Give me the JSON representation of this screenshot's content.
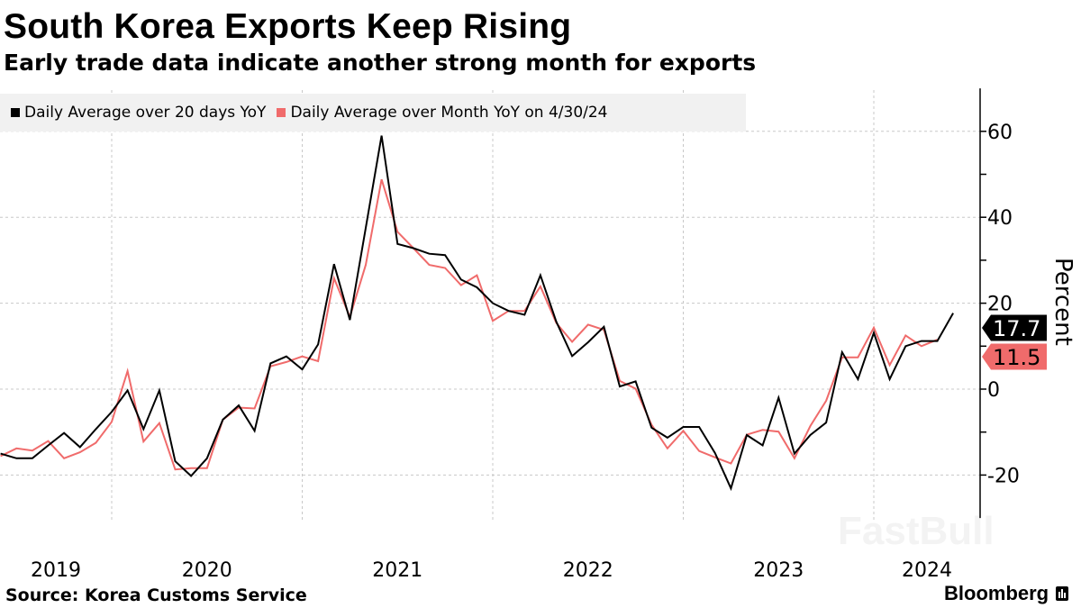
{
  "header": {
    "title": "South Korea Exports Keep Rising",
    "subtitle": "Early trade data indicate another strong month for exports"
  },
  "footer": {
    "source": "Source: Korea Customs Service",
    "brand": "Bloomberg",
    "watermark": "FastBull"
  },
  "chart_data": {
    "type": "line",
    "title": "South Korea Exports Keep Rising",
    "subtitle": "Early trade data indicate another strong month for exports",
    "ylabel": "Percent",
    "xlabel": "",
    "ylim": [
      -30,
      70
    ],
    "yticks": [
      -20,
      0,
      20,
      40,
      60
    ],
    "xtick_labels": [
      "2019",
      "2020",
      "2021",
      "2022",
      "2023",
      "2024"
    ],
    "grid": true,
    "legend_position": "top-left",
    "y_axis_side": "right",
    "series": [
      {
        "name": "Daily Average over 20 days YoY",
        "color": "#000000",
        "last_value_label": "17.7",
        "x": [
          "2019-05",
          "2019-06",
          "2019-07",
          "2019-08",
          "2019-09",
          "2019-10",
          "2019-11",
          "2019-12",
          "2020-01",
          "2020-02",
          "2020-03",
          "2020-04",
          "2020-05",
          "2020-06",
          "2020-07",
          "2020-08",
          "2020-09",
          "2020-10",
          "2020-11",
          "2020-12",
          "2021-01",
          "2021-02",
          "2021-03",
          "2021-04",
          "2021-05",
          "2021-06",
          "2021-07",
          "2021-08",
          "2021-09",
          "2021-10",
          "2021-11",
          "2021-12",
          "2022-01",
          "2022-02",
          "2022-03",
          "2022-04",
          "2022-05",
          "2022-06",
          "2022-07",
          "2022-08",
          "2022-09",
          "2022-10",
          "2022-11",
          "2022-12",
          "2023-01",
          "2023-02",
          "2023-03",
          "2023-04",
          "2023-05",
          "2023-06",
          "2023-07",
          "2023-08",
          "2023-09",
          "2023-10",
          "2023-11",
          "2023-12",
          "2024-01",
          "2024-02",
          "2024-03",
          "2024-04",
          "2024-05"
        ],
        "values": [
          -15.0,
          -16.1,
          -16.1,
          -13.1,
          -10.2,
          -13.5,
          -9.3,
          -5.3,
          -0.3,
          -9.3,
          -0.3,
          -16.8,
          -20.2,
          -16.1,
          -7.1,
          -3.8,
          -9.7,
          6.0,
          7.6,
          4.6,
          10.4,
          29.1,
          16.1,
          37.5,
          59.0,
          33.8,
          32.8,
          31.5,
          31.2,
          25.5,
          23.7,
          20.0,
          18.2,
          17.3,
          26.5,
          15.7,
          7.7,
          10.9,
          14.5,
          0.6,
          1.8,
          -9.0,
          -11.3,
          -8.8,
          -8.8,
          -14.9,
          -23.1,
          -10.7,
          -13.1,
          -2.0,
          -15.0,
          -10.7,
          -7.8,
          8.6,
          2.3,
          13.1,
          2.3,
          10.0,
          11.2,
          11.2,
          17.7
        ]
      },
      {
        "name": "Daily Average over Month YoY on 4/30/24",
        "color": "#f06b6b",
        "last_value_label": "11.5",
        "x": [
          "2019-05",
          "2019-06",
          "2019-07",
          "2019-08",
          "2019-09",
          "2019-10",
          "2019-11",
          "2019-12",
          "2020-01",
          "2020-02",
          "2020-03",
          "2020-04",
          "2020-05",
          "2020-06",
          "2020-07",
          "2020-08",
          "2020-09",
          "2020-10",
          "2020-11",
          "2020-12",
          "2021-01",
          "2021-02",
          "2021-03",
          "2021-04",
          "2021-05",
          "2021-06",
          "2021-07",
          "2021-08",
          "2021-09",
          "2021-10",
          "2021-11",
          "2021-12",
          "2022-01",
          "2022-02",
          "2022-03",
          "2022-04",
          "2022-05",
          "2022-06",
          "2022-07",
          "2022-08",
          "2022-09",
          "2022-10",
          "2022-11",
          "2022-12",
          "2023-01",
          "2023-02",
          "2023-03",
          "2023-04",
          "2023-05",
          "2023-06",
          "2023-07",
          "2023-08",
          "2023-09",
          "2023-10",
          "2023-11",
          "2023-12",
          "2024-01",
          "2024-02",
          "2024-03",
          "2024-04"
        ],
        "values": [
          -15.6,
          -13.8,
          -14.3,
          -12.1,
          -16.1,
          -14.7,
          -12.5,
          -7.6,
          4.2,
          -12.2,
          -7.9,
          -18.7,
          -18.4,
          -18.4,
          -7.1,
          -4.3,
          -4.5,
          5.3,
          6.3,
          7.6,
          6.5,
          25.8,
          16.8,
          28.9,
          48.8,
          36.6,
          32.8,
          28.9,
          28.2,
          24.2,
          26.5,
          15.9,
          18.2,
          18.2,
          23.9,
          15.4,
          11.0,
          15.0,
          13.8,
          1.9,
          0.1,
          -8.3,
          -13.8,
          -9.7,
          -14.4,
          -15.9,
          -17.3,
          -10.6,
          -9.5,
          -9.9,
          -16.1,
          -8.6,
          -2.7,
          7.4,
          7.4,
          14.3,
          5.6,
          12.5,
          10.0,
          11.5
        ]
      }
    ]
  }
}
